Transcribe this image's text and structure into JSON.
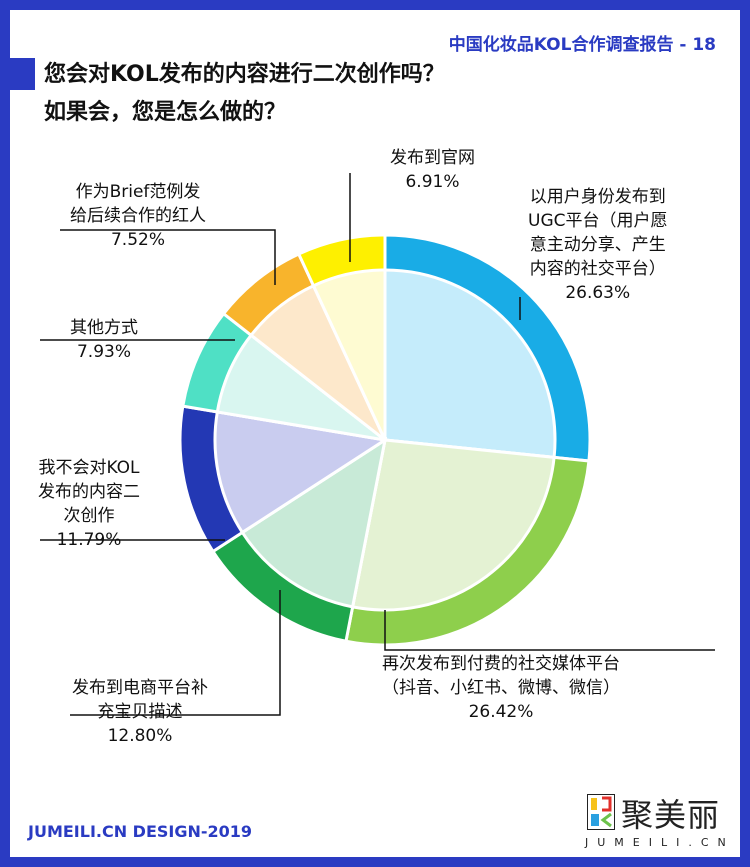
{
  "header": {
    "report_title": "中国化妆品KOL合作调查报告 - 18"
  },
  "question": {
    "line1": "您会对KOL发布的内容进行二次创作吗？",
    "line2": "如果会，您是怎么做的？"
  },
  "footer": {
    "credit": "JUMEILI.CN DESIGN-2019",
    "logo_cn": "聚美丽",
    "logo_en": "JUMEILI.CN"
  },
  "chart_data": {
    "type": "pie",
    "start": "12 o'clock, clockwise",
    "slices": [
      {
        "label": "以用户身份发布到UGC平台（用户愿意主动分享、产生内容的社交平台）",
        "label_lines": [
          "以用户身份发布到",
          "UGC平台（用户愿",
          "意主动分享、产生",
          "内容的社交平台）"
        ],
        "value": 26.63,
        "value_text": "26.63%",
        "color": "#19ace6",
        "fill": "#c5ecfb"
      },
      {
        "label": "再次发布到付费的社交媒体平台（抖音、小红书、微博、微信）",
        "label_lines": [
          "再次发布到付费的社交媒体平台",
          "（抖音、小红书、微博、微信）"
        ],
        "value": 26.42,
        "value_text": "26.42%",
        "color": "#8ecf4c",
        "fill": "#e4f2d3"
      },
      {
        "label": "发布到电商平台补充宝贝描述",
        "label_lines": [
          "发布到电商平台补",
          "充宝贝描述"
        ],
        "value": 12.8,
        "value_text": "12.80%",
        "color": "#1ea64c",
        "fill": "#c8ead7"
      },
      {
        "label": "我不会对KOL发布的内容二次创作",
        "label_lines": [
          "我不会对KOL",
          "发布的内容二",
          "次创作"
        ],
        "value": 11.79,
        "value_text": "11.79%",
        "color": "#2338b4",
        "fill": "#c9ccef"
      },
      {
        "label": "其他方式",
        "label_lines": [
          "其他方式"
        ],
        "value": 7.93,
        "value_text": "7.93%",
        "color": "#4fe0c5",
        "fill": "#d9f6f0"
      },
      {
        "label": "作为Brief范例发给后续合作的红人",
        "label_lines": [
          "作为Brief范例发",
          "给后续合作的红人"
        ],
        "value": 7.52,
        "value_text": "7.52%",
        "color": "#f8b42c",
        "fill": "#fde8cb"
      },
      {
        "label": "发布到官网",
        "label_lines": [
          "发布到官网"
        ],
        "value": 6.91,
        "value_text": "6.91%",
        "color": "#fef000",
        "fill": "#fefbd2"
      }
    ]
  }
}
